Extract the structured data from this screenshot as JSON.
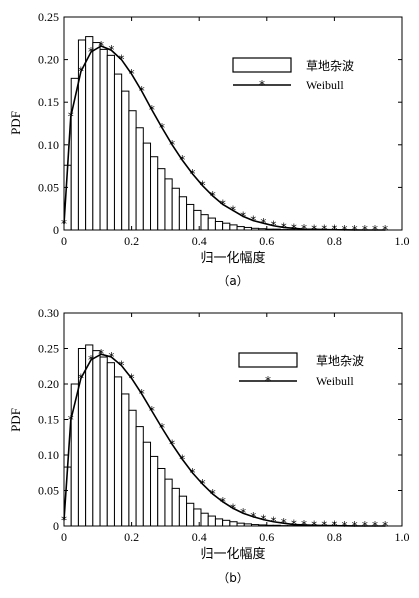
{
  "chart_data": [
    {
      "type": "bar",
      "caption": "（a）",
      "xlabel": "归一化幅度",
      "ylabel": "PDF",
      "xlim": [
        0,
        1.0
      ],
      "ylim": [
        0,
        0.25
      ],
      "xticks": [
        "0",
        "0.2",
        "0.4",
        "0.6",
        "0.8",
        "1.0"
      ],
      "yticks": [
        "0",
        "0.05",
        "0.10",
        "0.15",
        "0.20",
        "0.25"
      ],
      "legend_position": "top-right",
      "series": [
        {
          "name": "草地杂波",
          "type": "bar",
          "bin_width": 0.0213,
          "x": [
            0.0,
            0.0213,
            0.0427,
            0.064,
            0.0853,
            0.1067,
            0.128,
            0.1493,
            0.1707,
            0.192,
            0.2133,
            0.2347,
            0.256,
            0.2773,
            0.2987,
            0.32,
            0.3413,
            0.3627,
            0.384,
            0.4053,
            0.4267,
            0.448,
            0.4693,
            0.4907,
            0.512,
            0.5333,
            0.5547,
            0.576,
            0.5973,
            0.6187,
            0.64,
            0.6613,
            0.6827,
            0.704
          ],
          "values": [
            0.076,
            0.178,
            0.223,
            0.227,
            0.22,
            0.212,
            0.205,
            0.183,
            0.163,
            0.14,
            0.12,
            0.102,
            0.086,
            0.072,
            0.06,
            0.049,
            0.039,
            0.03,
            0.023,
            0.018,
            0.014,
            0.01,
            0.008,
            0.006,
            0.004,
            0.003,
            0.002,
            0.0015,
            0.001,
            0.001,
            0.0005,
            0.0005,
            0.0003,
            0.0002
          ]
        },
        {
          "name": "Weibull",
          "type": "line",
          "marker": "*",
          "x": [
            0.0,
            0.02,
            0.05,
            0.08,
            0.11,
            0.14,
            0.17,
            0.2,
            0.23,
            0.26,
            0.29,
            0.32,
            0.35,
            0.38,
            0.41,
            0.44,
            0.47,
            0.5,
            0.53,
            0.56,
            0.59,
            0.62,
            0.65,
            0.68,
            0.71,
            0.74,
            0.77,
            0.8,
            0.83,
            0.86,
            0.89,
            0.92,
            0.95
          ],
          "values": [
            0.007,
            0.133,
            0.186,
            0.209,
            0.216,
            0.211,
            0.2,
            0.183,
            0.163,
            0.141,
            0.12,
            0.1,
            0.082,
            0.066,
            0.052,
            0.04,
            0.03,
            0.023,
            0.016,
            0.011,
            0.008,
            0.005,
            0.003,
            0.002,
            0.001,
            0.0008,
            0.0005,
            0.0003,
            0.0002,
            0.0001,
            0.0,
            0.0,
            0.0
          ]
        }
      ]
    },
    {
      "type": "bar",
      "caption": "（b）",
      "xlabel": "归一化幅度",
      "ylabel": "PDF",
      "xlim": [
        0,
        1.0
      ],
      "ylim": [
        0,
        0.3
      ],
      "xticks": [
        "0",
        "0.2",
        "0.4",
        "0.6",
        "0.8",
        "1.0"
      ],
      "yticks": [
        "0",
        "0.05",
        "0.10",
        "0.15",
        "0.20",
        "0.25",
        "0.30"
      ],
      "legend_position": "top-right",
      "series": [
        {
          "name": "草地杂波",
          "type": "bar",
          "bin_width": 0.0213,
          "x": [
            0.0,
            0.0213,
            0.0427,
            0.064,
            0.0853,
            0.1067,
            0.128,
            0.1493,
            0.1707,
            0.192,
            0.2133,
            0.2347,
            0.256,
            0.2773,
            0.2987,
            0.32,
            0.3413,
            0.3627,
            0.384,
            0.4053,
            0.4267,
            0.448,
            0.4693,
            0.4907,
            0.512,
            0.5333,
            0.5547,
            0.576,
            0.5973,
            0.6187,
            0.64,
            0.6613,
            0.6827,
            0.704
          ],
          "values": [
            0.083,
            0.2,
            0.25,
            0.255,
            0.247,
            0.238,
            0.23,
            0.21,
            0.186,
            0.163,
            0.14,
            0.118,
            0.098,
            0.081,
            0.066,
            0.053,
            0.042,
            0.032,
            0.024,
            0.018,
            0.014,
            0.01,
            0.008,
            0.006,
            0.004,
            0.003,
            0.002,
            0.0015,
            0.001,
            0.001,
            0.0005,
            0.0005,
            0.0003,
            0.0002
          ]
        },
        {
          "name": "Weibull",
          "type": "line",
          "marker": "*",
          "x": [
            0.0,
            0.02,
            0.05,
            0.08,
            0.11,
            0.14,
            0.17,
            0.2,
            0.23,
            0.26,
            0.29,
            0.32,
            0.35,
            0.38,
            0.41,
            0.44,
            0.47,
            0.5,
            0.53,
            0.56,
            0.59,
            0.62,
            0.65,
            0.68,
            0.71,
            0.74,
            0.77,
            0.8,
            0.83,
            0.86,
            0.89,
            0.92,
            0.95
          ],
          "values": [
            0.008,
            0.149,
            0.208,
            0.234,
            0.242,
            0.238,
            0.226,
            0.208,
            0.186,
            0.162,
            0.138,
            0.115,
            0.094,
            0.075,
            0.059,
            0.045,
            0.034,
            0.025,
            0.018,
            0.013,
            0.009,
            0.006,
            0.004,
            0.002,
            0.0015,
            0.001,
            0.0006,
            0.0004,
            0.0002,
            0.0001,
            0.0,
            0.0,
            0.0
          ]
        }
      ]
    }
  ]
}
